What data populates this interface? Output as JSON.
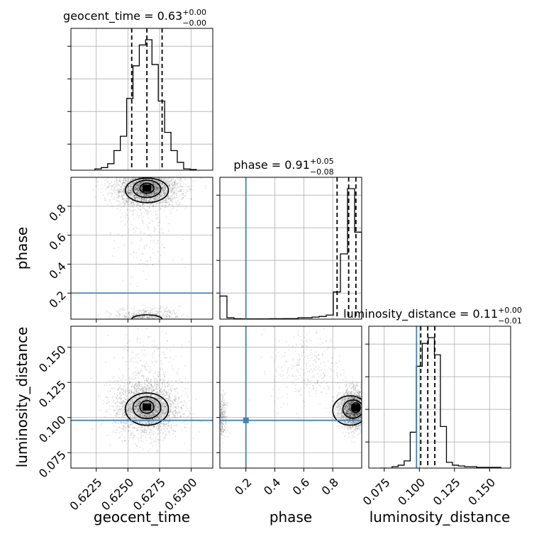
{
  "chart_data": {
    "type": "corner",
    "parameters": [
      "geocent_time",
      "phase",
      "luminosity_distance"
    ],
    "truths": {
      "geocent_time": null,
      "phase": 0.2,
      "luminosity_distance": 0.098
    },
    "colors": {
      "truth": "#4682b4",
      "hist": "#000000",
      "points": "#000000",
      "grid": "#b0b0b0"
    },
    "titles": [
      {
        "param": "geocent_time",
        "prefix": "geocent_time = 0.63",
        "sup": "+0.00",
        "sub": "−0.00"
      },
      {
        "param": "phase",
        "prefix": "phase = 0.91",
        "sup": "+0.05",
        "sub": "−0.08"
      },
      {
        "param": "luminosity_distance",
        "prefix": "luminosity_distance = 0.11",
        "sup": "+0.00",
        "sub": "−0.01"
      }
    ],
    "axes": {
      "geocent_time": {
        "range": [
          0.6205,
          0.6317
        ],
        "ticks": [
          0.6225,
          0.625,
          0.6275,
          0.63
        ],
        "tick_labels": [
          "0.6225",
          "0.6250",
          "0.6275",
          "0.6300"
        ]
      },
      "phase": {
        "range": [
          0.02,
          1.0
        ],
        "ticks": [
          0.2,
          0.4,
          0.6,
          0.8
        ],
        "tick_labels": [
          "0.2",
          "0.4",
          "0.6",
          "0.8"
        ]
      },
      "luminosity_distance": {
        "range": [
          0.064,
          0.165
        ],
        "ticks": [
          0.075,
          0.1,
          0.125,
          0.15
        ],
        "tick_labels": [
          "0.075",
          "0.100",
          "0.125",
          "0.150"
        ]
      }
    },
    "marginals": {
      "geocent_time": {
        "bin_edges": [
          0.6224,
          0.6229,
          0.6234,
          0.6239,
          0.6244,
          0.6249,
          0.6254,
          0.6259,
          0.6264,
          0.6269,
          0.6274,
          0.6279,
          0.6284,
          0.6289,
          0.6294,
          0.6299,
          0.6304
        ],
        "counts": [
          0.01,
          0.02,
          0.05,
          0.15,
          0.26,
          0.55,
          0.8,
          0.96,
          1.0,
          0.81,
          0.53,
          0.29,
          0.15,
          0.06,
          0.01,
          0.005
        ],
        "quantiles": [
          0.6253,
          0.6265,
          0.6277
        ]
      },
      "phase": {
        "bin_edges": [
          0.02,
          0.069,
          0.118,
          0.167,
          0.216,
          0.265,
          0.314,
          0.363,
          0.412,
          0.461,
          0.51,
          0.559,
          0.608,
          0.657,
          0.706,
          0.755,
          0.804,
          0.853,
          0.902,
          0.951,
          1.0
        ],
        "counts": [
          0.17,
          0.01,
          0.003,
          0.002,
          0.002,
          0.002,
          0.002,
          0.003,
          0.003,
          0.004,
          0.004,
          0.01,
          0.01,
          0.015,
          0.02,
          0.03,
          0.2,
          0.48,
          0.96,
          0.64
        ],
        "quantiles": [
          0.83,
          0.91,
          0.96
        ]
      },
      "luminosity_distance": {
        "bin_edges": [
          0.072,
          0.0763,
          0.0806,
          0.0849,
          0.0892,
          0.0935,
          0.0978,
          0.1021,
          0.1064,
          0.1107,
          0.115,
          0.1193,
          0.1236,
          0.1279,
          0.1322,
          0.1365,
          0.1408,
          0.1451,
          0.1494,
          0.1537,
          0.158
        ],
        "counts": [
          0.0,
          0.0,
          0.01,
          0.02,
          0.05,
          0.25,
          0.71,
          0.87,
          0.91,
          0.79,
          0.29,
          0.04,
          0.02,
          0.015,
          0.01,
          0.01,
          0.005,
          0.005,
          0.005,
          0.005
        ],
        "quantiles": [
          0.101,
          0.106,
          0.111
        ]
      }
    },
    "pairs": [
      {
        "x": "geocent_time",
        "y": "phase",
        "clusters": [
          {
            "cx": 0.6265,
            "cy": 0.92,
            "sx": 0.0013,
            "sy": 0.06,
            "n": 2600
          },
          {
            "cx": 0.6265,
            "cy": 0.04,
            "sx": 0.0013,
            "sy": 0.03,
            "n": 500
          },
          {
            "cx": 0.6262,
            "cy": 0.62,
            "sx": 0.0011,
            "sy": 0.18,
            "n": 180
          }
        ],
        "contours": [
          {
            "cx": 0.6265,
            "cy": 0.925,
            "rx": 0.00055,
            "ry": 0.035
          },
          {
            "cx": 0.6265,
            "cy": 0.92,
            "rx": 0.0011,
            "ry": 0.06
          },
          {
            "cx": 0.6265,
            "cy": 0.91,
            "rx": 0.0017,
            "ry": 0.085
          },
          {
            "cx": 0.6265,
            "cy": 0.02,
            "rx": 0.0012,
            "ry": 0.03
          }
        ]
      },
      {
        "x": "geocent_time",
        "y": "luminosity_distance",
        "clusters": [
          {
            "cx": 0.6265,
            "cy": 0.107,
            "sx": 0.0013,
            "sy": 0.01,
            "n": 2400
          },
          {
            "cx": 0.6262,
            "cy": 0.13,
            "sx": 0.0015,
            "sy": 0.018,
            "n": 250
          }
        ],
        "contours": [
          {
            "cx": 0.6265,
            "cy": 0.1075,
            "rx": 0.00055,
            "ry": 0.0045
          },
          {
            "cx": 0.6265,
            "cy": 0.107,
            "rx": 0.0011,
            "ry": 0.0078
          },
          {
            "cx": 0.6265,
            "cy": 0.106,
            "rx": 0.0017,
            "ry": 0.0115
          }
        ]
      },
      {
        "x": "phase",
        "y": "luminosity_distance",
        "clusters": [
          {
            "cx": 0.95,
            "cy": 0.106,
            "sx": 0.05,
            "sy": 0.007,
            "n": 2200
          },
          {
            "cx": 0.03,
            "cy": 0.1,
            "sx": 0.02,
            "sy": 0.008,
            "n": 350
          },
          {
            "cx": 0.62,
            "cy": 0.135,
            "sx": 0.12,
            "sy": 0.015,
            "n": 300
          }
        ],
        "contours": [
          {
            "cx": 0.96,
            "cy": 0.107,
            "rx": 0.03,
            "ry": 0.0035
          },
          {
            "cx": 0.94,
            "cy": 0.106,
            "rx": 0.07,
            "ry": 0.0065
          },
          {
            "cx": 0.92,
            "cy": 0.105,
            "rx": 0.12,
            "ry": 0.0105
          }
        ]
      }
    ],
    "grid": true
  }
}
